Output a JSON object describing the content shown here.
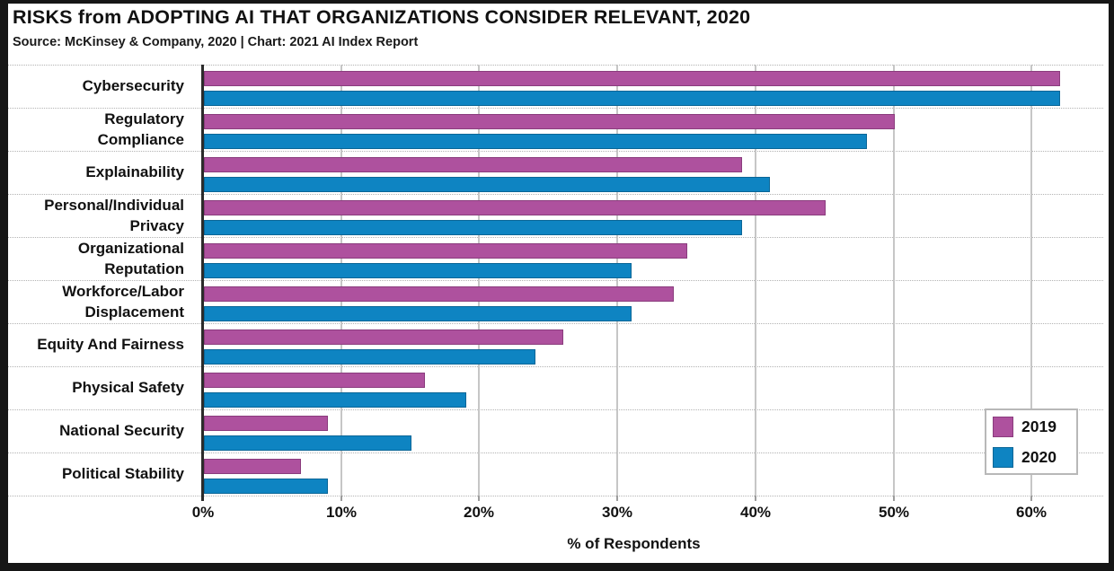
{
  "header": {
    "title": "RISKS from ADOPTING AI THAT ORGANIZATIONS CONSIDER RELEVANT, 2020",
    "source": "Source: McKinsey & Company, 2020 | Chart: 2021 AI Index Report"
  },
  "chart_data": {
    "type": "bar",
    "orientation": "horizontal",
    "title": "RISKS from ADOPTING AI THAT ORGANIZATIONS CONSIDER RELEVANT, 2020",
    "categories": [
      "Cybersecurity",
      "Regulatory\nCompliance",
      "Explainability",
      "Personal/Individual\nPrivacy",
      "Organizational\nReputation",
      "Workforce/Labor\nDisplacement",
      "Equity And Fairness",
      "Physical Safety",
      "National Security",
      "Political Stability"
    ],
    "series": [
      {
        "name": "2019",
        "color": "#ae519e",
        "edge_color": "#8a3c7d",
        "values": [
          62,
          50,
          39,
          45,
          35,
          34,
          26,
          16,
          9,
          7
        ]
      },
      {
        "name": "2020",
        "color": "#0e84c2",
        "edge_color": "#0a6697",
        "values": [
          62,
          48,
          41,
          39,
          31,
          31,
          24,
          19,
          15,
          9
        ]
      }
    ],
    "xlabel": "% of Respondents",
    "x_tick_labels": [
      "0%",
      "10%",
      "20%",
      "30%",
      "40%",
      "50%",
      "60%"
    ],
    "xlim": [
      0,
      62.4
    ],
    "grid": {
      "vertical_gridlines": "solid",
      "row_separators": "dotted"
    },
    "legend_position": "lower-right",
    "grid_color": "#c6c6c6",
    "frame_color": "#161616"
  }
}
